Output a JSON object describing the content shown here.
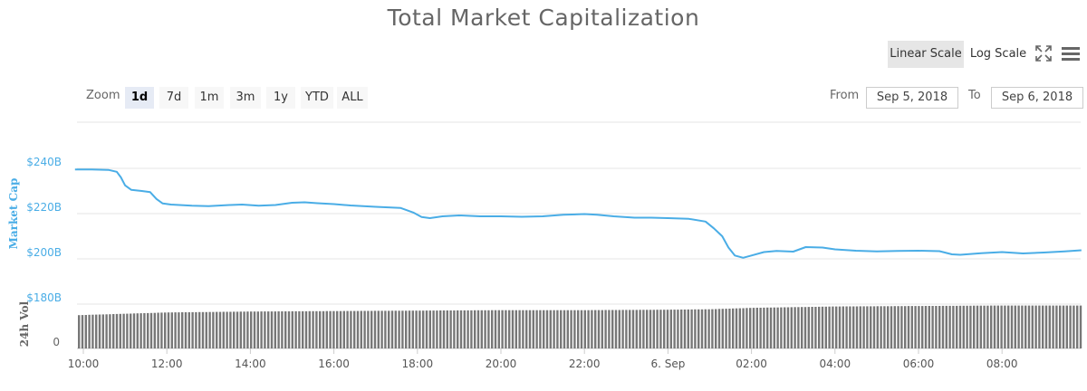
{
  "title": "Total Market Capitalization",
  "scale_buttons": {
    "linear": "Linear Scale",
    "log": "Log Scale"
  },
  "icons": {
    "fullscreen": "fullscreen-icon",
    "menu": "hamburger-menu-icon"
  },
  "zoom": {
    "label": "Zoom",
    "buttons": [
      "1d",
      "7d",
      "1m",
      "3m",
      "1y",
      "YTD",
      "ALL"
    ],
    "active": "1d"
  },
  "range": {
    "from_label": "From",
    "from_value": "Sep 5, 2018",
    "to_label": "To",
    "to_value": "Sep 6, 2018"
  },
  "colors": {
    "line": "#4aade6",
    "volume": "#777777",
    "axis_label": "#4aade6",
    "grid": "#e6e6e6",
    "active_scale_bg": "#e6e6e6"
  },
  "chart_data": {
    "type": "line",
    "title": "Total Market Capitalization",
    "ylabel": "Market Cap",
    "ylabel_volume": "24h Vol",
    "y_ticks": [
      "$240B",
      "$220B",
      "$200B",
      "$180B"
    ],
    "y_tick_values": [
      240,
      220,
      200,
      180
    ],
    "y_volume_ticks": [
      "0"
    ],
    "x_ticks": [
      "10:00",
      "12:00",
      "14:00",
      "16:00",
      "18:00",
      "20:00",
      "22:00",
      "6. Sep",
      "02:00",
      "04:00",
      "06:00",
      "08:00"
    ],
    "x_tick_hours": [
      10,
      12,
      14,
      16,
      18,
      20,
      22,
      24,
      26,
      28,
      30,
      32
    ],
    "ylim": [
      180,
      250
    ],
    "series": [
      {
        "name": "Market Cap",
        "x_hours": [
          9.8,
          10.2,
          10.6,
          10.8,
          10.9,
          11.0,
          11.15,
          11.4,
          11.6,
          11.75,
          11.9,
          12.1,
          12.6,
          13.0,
          13.5,
          13.8,
          14.2,
          14.6,
          15.0,
          15.3,
          15.6,
          16.0,
          16.4,
          17.0,
          17.6,
          17.9,
          18.1,
          18.3,
          18.6,
          19.0,
          19.5,
          20.0,
          20.5,
          21.0,
          21.5,
          22.0,
          22.3,
          22.7,
          23.2,
          23.6,
          24.0,
          24.5,
          24.9,
          25.1,
          25.3,
          25.45,
          25.6,
          25.8,
          26.0,
          26.3,
          26.6,
          27.0,
          27.3,
          27.7,
          28.0,
          28.5,
          29.0,
          29.5,
          30.0,
          30.5,
          30.8,
          31.0,
          31.5,
          32.0,
          32.5,
          33.0,
          33.5,
          33.9
        ],
        "values": [
          239.5,
          239.5,
          239.3,
          238.5,
          236.0,
          232.5,
          230.5,
          230.0,
          229.5,
          226.5,
          224.5,
          224.0,
          223.5,
          223.3,
          223.8,
          224.0,
          223.5,
          223.8,
          224.8,
          225.0,
          224.6,
          224.2,
          223.6,
          223.0,
          222.5,
          220.5,
          218.5,
          218.0,
          218.8,
          219.2,
          218.8,
          218.8,
          218.6,
          218.8,
          219.5,
          219.8,
          219.5,
          218.8,
          218.2,
          218.2,
          218.0,
          217.7,
          216.5,
          213.5,
          210.0,
          205.0,
          201.5,
          200.5,
          201.5,
          203.0,
          203.5,
          203.2,
          205.2,
          205.0,
          204.2,
          203.6,
          203.3,
          203.5,
          203.6,
          203.4,
          202.0,
          201.8,
          202.5,
          203.0,
          202.4,
          202.8,
          203.3,
          203.8
        ]
      },
      {
        "name": "24h Vol",
        "x_hours": [
          9.8,
          12.0,
          14.0,
          16.0,
          18.0,
          20.0,
          22.0,
          24.0,
          25.0,
          26.0,
          28.0,
          30.0,
          32.0,
          33.9
        ],
        "values": [
          0.72,
          0.78,
          0.8,
          0.81,
          0.82,
          0.83,
          0.83,
          0.84,
          0.85,
          0.88,
          0.91,
          0.92,
          0.93,
          0.93
        ]
      }
    ],
    "grid": true,
    "legend": "none"
  }
}
